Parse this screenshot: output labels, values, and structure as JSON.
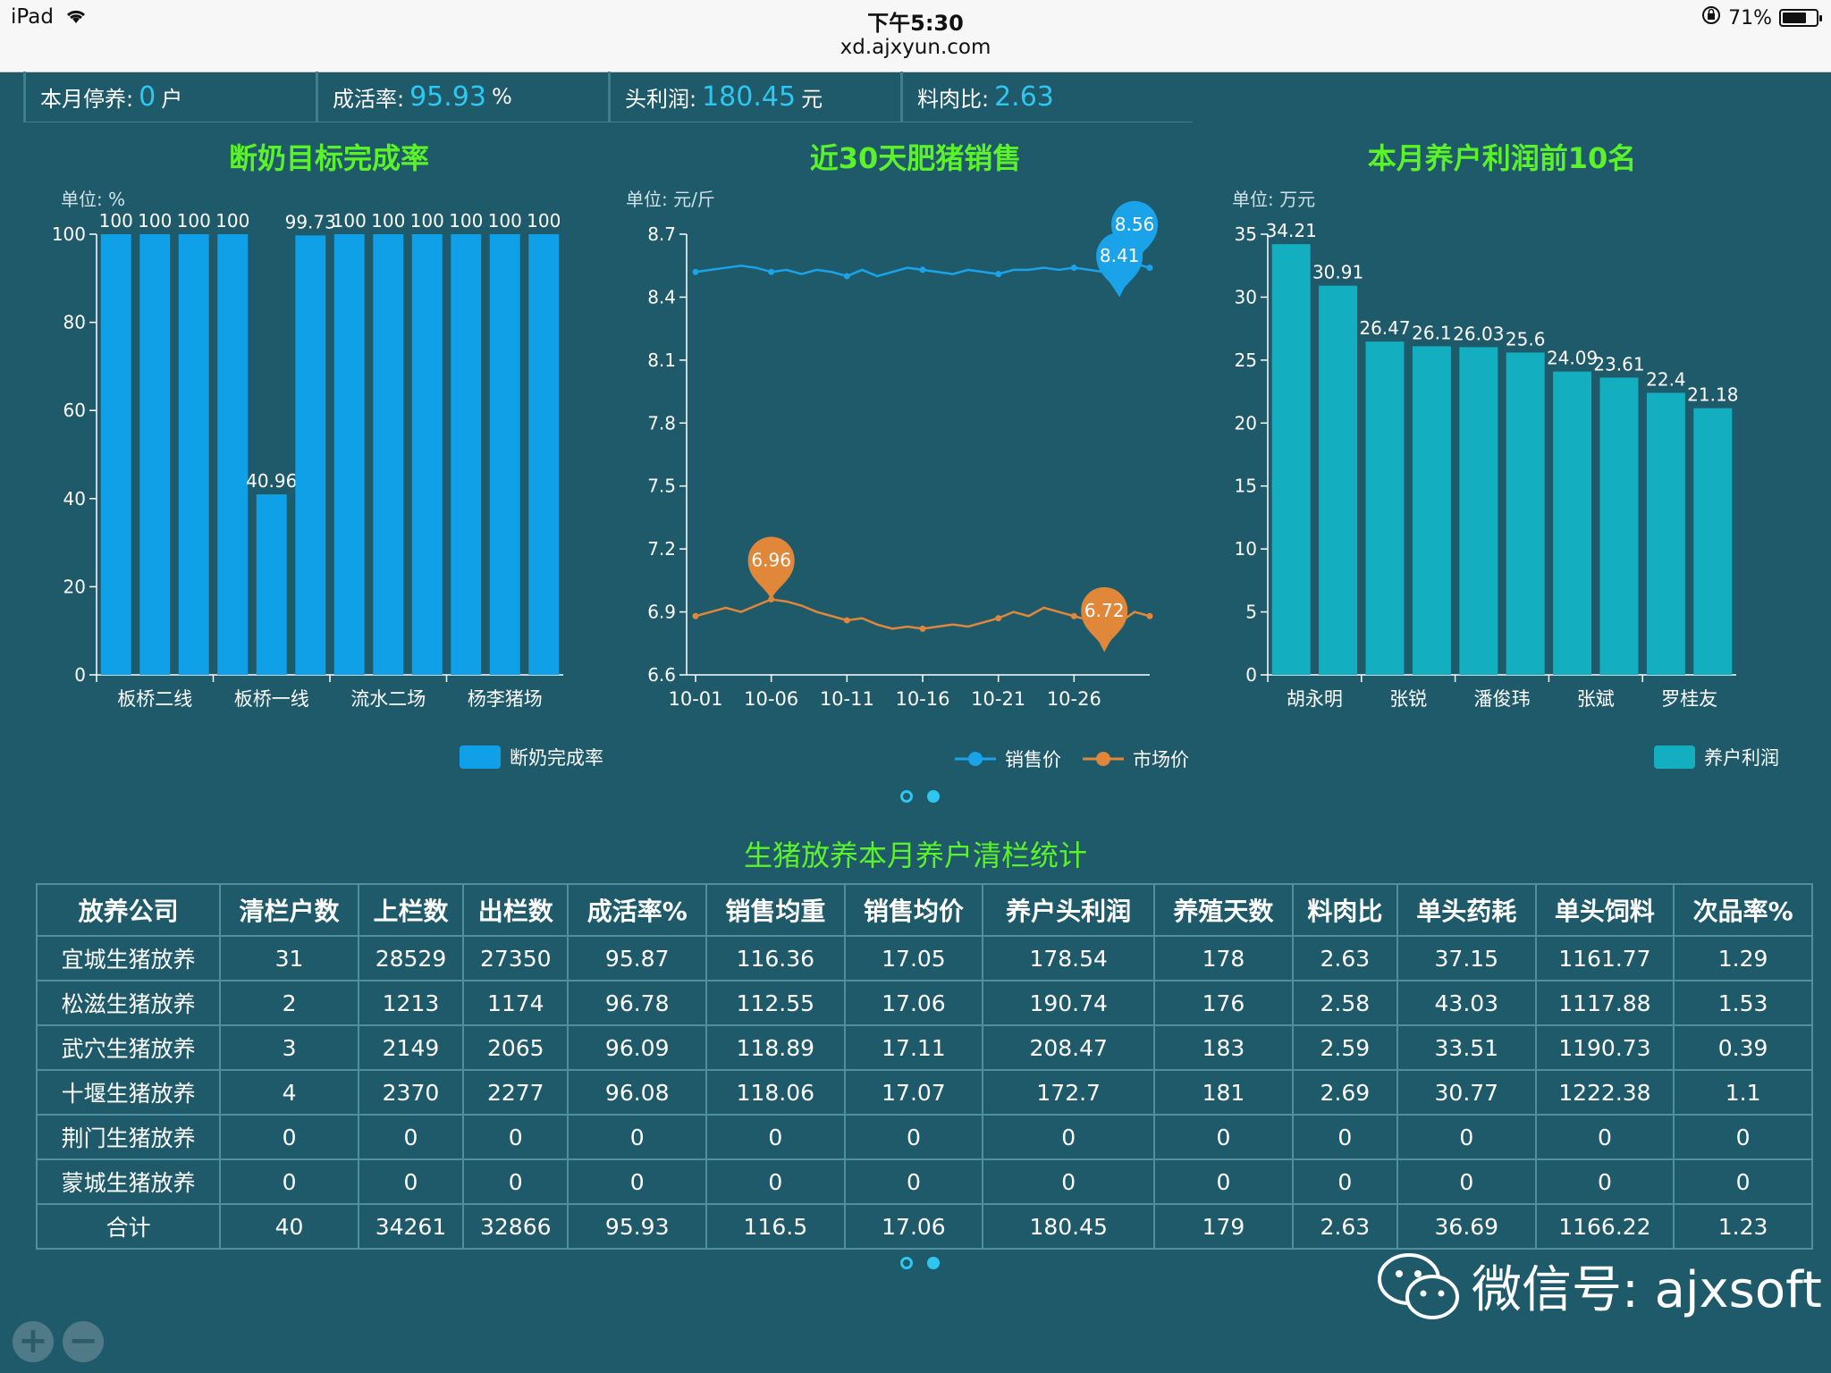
{
  "status_bar": {
    "device": "iPad",
    "time": "下午5:30",
    "url": "xd.ajxyun.com",
    "battery": "71%",
    "battery_level": 0.71
  },
  "stats": [
    {
      "label": "本月停养:",
      "value": "0",
      "unit": "户"
    },
    {
      "label": "成活率:",
      "value": "95.93",
      "unit": "%"
    },
    {
      "label": "头利润:",
      "value": "180.45",
      "unit": "元"
    },
    {
      "label": "料肉比:",
      "value": "2.63",
      "unit": ""
    }
  ],
  "charts": {
    "weaning": {
      "title": "断奶目标完成率",
      "unit": "单位: %",
      "legend": "断奶完成率",
      "color": "#0fa0e8"
    },
    "sales": {
      "title": "近30天肥猪销售",
      "unit": "单位: 元/斤",
      "legend": [
        "销售价",
        "市场价"
      ],
      "colors": [
        "#1aa3e8",
        "#e0873a"
      ]
    },
    "profit": {
      "title": "本月养户利润前10名",
      "unit": "单位: 万元",
      "legend": "养户利润",
      "color": "#13aebf"
    }
  },
  "chart_data": [
    {
      "type": "bar",
      "title": "断奶目标完成率",
      "ylabel": "单位: %",
      "ylim": [
        0,
        100
      ],
      "yticks": [
        0,
        20,
        40,
        60,
        80,
        100
      ],
      "x_tick_labels": [
        "板桥二线",
        "板桥一线",
        "流水二场",
        "杨李猪场"
      ],
      "values": [
        100,
        100,
        100,
        100,
        40.96,
        99.73,
        100,
        100,
        100,
        100,
        100,
        100
      ],
      "data_labels": [
        "100",
        "100",
        "100",
        "100",
        "40.96",
        "99.73",
        "100",
        "100",
        "100",
        "100",
        "100",
        "100"
      ],
      "legend": "断奶完成率"
    },
    {
      "type": "line",
      "title": "近30天肥猪销售",
      "ylabel": "单位: 元/斤",
      "ylim": [
        6.6,
        8.7
      ],
      "yticks": [
        "6.6",
        "6.9",
        "7.2",
        "7.5",
        "7.8",
        "8.1",
        "8.4",
        "8.7"
      ],
      "x_tick_labels": [
        "10-01",
        "10-06",
        "10-11",
        "10-16",
        "10-21",
        "10-26"
      ],
      "series": [
        {
          "name": "销售价",
          "values": [
            8.52,
            8.53,
            8.54,
            8.55,
            8.54,
            8.52,
            8.53,
            8.51,
            8.53,
            8.52,
            8.5,
            8.53,
            8.5,
            8.52,
            8.54,
            8.53,
            8.52,
            8.51,
            8.53,
            8.52,
            8.51,
            8.53,
            8.53,
            8.54,
            8.53,
            8.54,
            8.53,
            8.52,
            8.41,
            8.56,
            8.54
          ],
          "max": "8.56",
          "min": "8.41"
        },
        {
          "name": "市场价",
          "values": [
            6.88,
            6.9,
            6.92,
            6.9,
            6.93,
            6.96,
            6.95,
            6.93,
            6.9,
            6.88,
            6.86,
            6.87,
            6.84,
            6.82,
            6.83,
            6.82,
            6.83,
            6.84,
            6.83,
            6.85,
            6.87,
            6.9,
            6.88,
            6.92,
            6.9,
            6.88,
            6.86,
            6.72,
            6.85,
            6.9,
            6.88
          ],
          "max": "6.96",
          "min": "6.72"
        }
      ]
    },
    {
      "type": "bar",
      "title": "本月养户利润前10名",
      "ylabel": "单位: 万元",
      "ylim": [
        0,
        35
      ],
      "yticks": [
        0,
        5,
        10,
        15,
        20,
        25,
        30,
        35
      ],
      "x_tick_labels": [
        "胡永明",
        "张锐",
        "潘俊玮",
        "张斌",
        "罗桂友"
      ],
      "values": [
        34.21,
        30.91,
        26.47,
        26.1,
        26.03,
        25.6,
        24.09,
        23.61,
        22.4,
        21.18
      ],
      "data_labels": [
        "34.21",
        "30.91",
        "26.47",
        "26.1",
        "26.03",
        "25.6",
        "24.09",
        "23.61",
        "22.4",
        "21.18"
      ],
      "legend": "养户利润"
    }
  ],
  "table": {
    "title": "生猪放养本月养户清栏统计",
    "headers": [
      "放养公司",
      "清栏户数",
      "上栏数",
      "出栏数",
      "成活率%",
      "销售均重",
      "销售均价",
      "养户头利润",
      "养殖天数",
      "料肉比",
      "单头药耗",
      "单头饲料",
      "次品率%"
    ],
    "rows": [
      [
        "宜城生猪放养",
        "31",
        "28529",
        "27350",
        "95.87",
        "116.36",
        "17.05",
        "178.54",
        "178",
        "2.63",
        "37.15",
        "1161.77",
        "1.29"
      ],
      [
        "松滋生猪放养",
        "2",
        "1213",
        "1174",
        "96.78",
        "112.55",
        "17.06",
        "190.74",
        "176",
        "2.58",
        "43.03",
        "1117.88",
        "1.53"
      ],
      [
        "武穴生猪放养",
        "3",
        "2149",
        "2065",
        "96.09",
        "118.89",
        "17.11",
        "208.47",
        "183",
        "2.59",
        "33.51",
        "1190.73",
        "0.39"
      ],
      [
        "十堰生猪放养",
        "4",
        "2370",
        "2277",
        "96.08",
        "118.06",
        "17.07",
        "172.7",
        "181",
        "2.69",
        "30.77",
        "1222.38",
        "1.1"
      ],
      [
        "荆门生猪放养",
        "0",
        "0",
        "0",
        "0",
        "0",
        "0",
        "0",
        "0",
        "0",
        "0",
        "0",
        "0"
      ],
      [
        "蒙城生猪放养",
        "0",
        "0",
        "0",
        "0",
        "0",
        "0",
        "0",
        "0",
        "0",
        "0",
        "0",
        "0"
      ],
      [
        "合计",
        "40",
        "34261",
        "32866",
        "95.93",
        "116.5",
        "17.06",
        "180.45",
        "179",
        "2.63",
        "36.69",
        "1166.22",
        "1.23"
      ]
    ]
  },
  "zoom": {
    "in": "+",
    "out": "−"
  },
  "watermark": "微信号: ajxsoft"
}
